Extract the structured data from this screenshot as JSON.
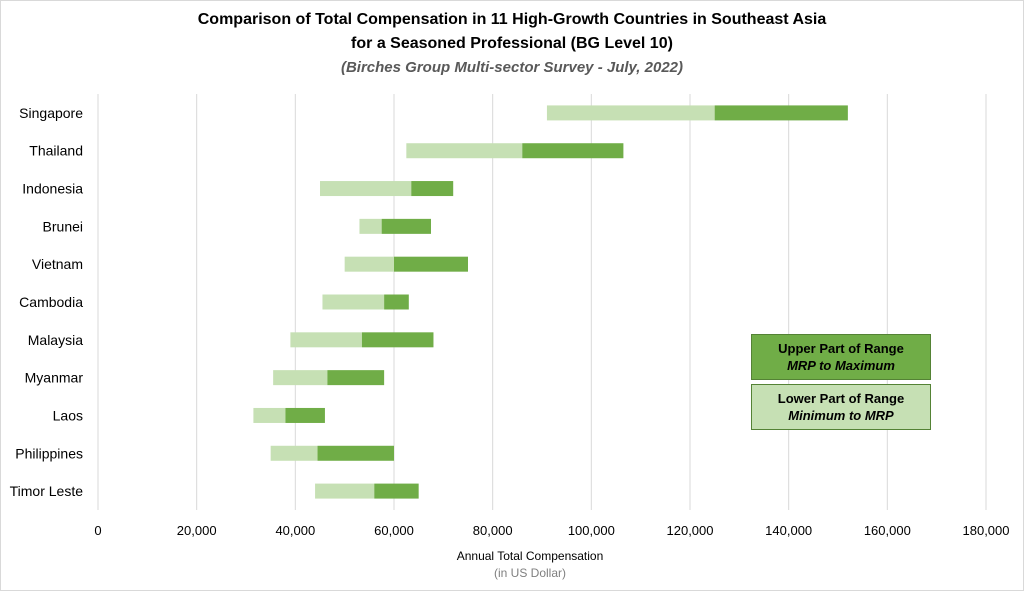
{
  "chart_data": {
    "type": "bar",
    "orientation": "horizontal",
    "stacked": "floating",
    "title": "Comparison of Total Compensation in 11 High-Growth Countries in Southeast Asia",
    "title_line2": "for a Seasoned Professional (BG Level 10)",
    "subtitle": "(Birches Group Multi-sector Survey - July, 2022)",
    "xlabel": "Annual Total Compensation",
    "xlabel_sub": "(in US Dollar)",
    "xlim": [
      0,
      180000
    ],
    "xticks": [
      0,
      20000,
      40000,
      60000,
      80000,
      100000,
      120000,
      140000,
      160000,
      180000
    ],
    "xtick_labels": [
      "0",
      "20,000",
      "40,000",
      "60,000",
      "80,000",
      "100,000",
      "120,000",
      "140,000",
      "160,000",
      "180,000"
    ],
    "grid": true,
    "categories": [
      "Singapore",
      "Thailand",
      "Indonesia",
      "Brunei",
      "Vietnam",
      "Cambodia",
      "Malaysia",
      "Myanmar",
      "Laos",
      "Philippines",
      "Timor Leste"
    ],
    "series": [
      {
        "name": "Lower Part of Range",
        "role": "minimum_to_mrp",
        "minimum": [
          91000,
          62500,
          45000,
          53000,
          50000,
          45500,
          39000,
          35500,
          31500,
          35000,
          44000
        ],
        "mrp": [
          125000,
          86000,
          63500,
          57500,
          60000,
          58000,
          53500,
          46500,
          38000,
          44500,
          56000
        ]
      },
      {
        "name": "Upper Part of Range",
        "role": "mrp_to_maximum",
        "mrp": [
          125000,
          86000,
          63500,
          57500,
          60000,
          58000,
          53500,
          46500,
          38000,
          44500,
          56000
        ],
        "maximum": [
          152000,
          106500,
          72000,
          67500,
          75000,
          63000,
          68000,
          58000,
          46000,
          60000,
          65000
        ]
      }
    ],
    "colors": {
      "lower": "#c6e0b4",
      "upper": "#70ad47",
      "grid": "#d9d9d9"
    },
    "legend": {
      "position": "right",
      "upper": {
        "line1": "Upper  Part of Range",
        "line2": "MRP to Maximum"
      },
      "lower": {
        "line1": "Lower Part of Range",
        "line2": "Minimum to MRP"
      }
    }
  }
}
